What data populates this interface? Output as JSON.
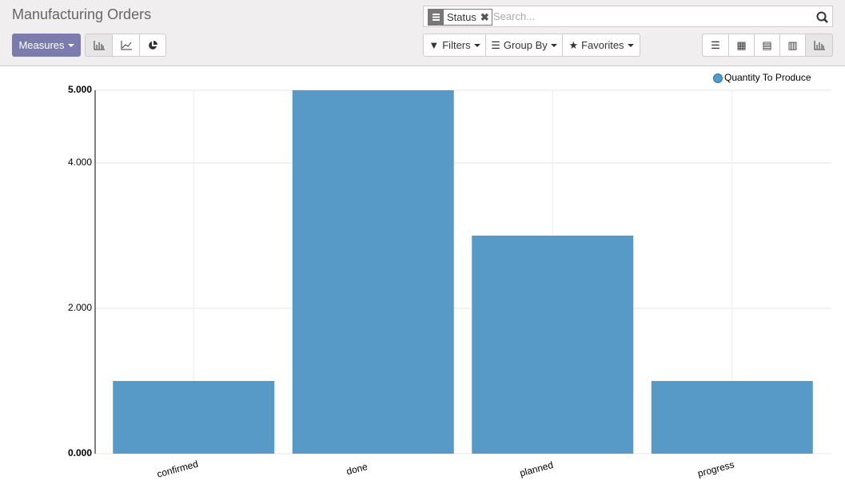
{
  "header": {
    "title": "Manufacturing Orders",
    "facet": "Status",
    "search_placeholder": "Search...",
    "measures": "Measures",
    "filters": "Filters",
    "group_by": "Group By",
    "favorites": "Favorites"
  },
  "chart_data": {
    "type": "bar",
    "categories": [
      "confirmed",
      "done",
      "planned",
      "progress"
    ],
    "series": [
      {
        "name": "Quantity To Produce",
        "color": "#5799c7",
        "values": [
          1,
          5,
          3,
          1
        ]
      }
    ],
    "ylim": [
      0,
      5
    ],
    "yticks": [
      {
        "value": 0,
        "label": "0.000"
      },
      {
        "value": 2,
        "label": "2.000"
      },
      {
        "value": 4,
        "label": "4.000"
      },
      {
        "value": 5,
        "label": "5.000"
      }
    ],
    "grid": true,
    "legend": "top-right"
  }
}
